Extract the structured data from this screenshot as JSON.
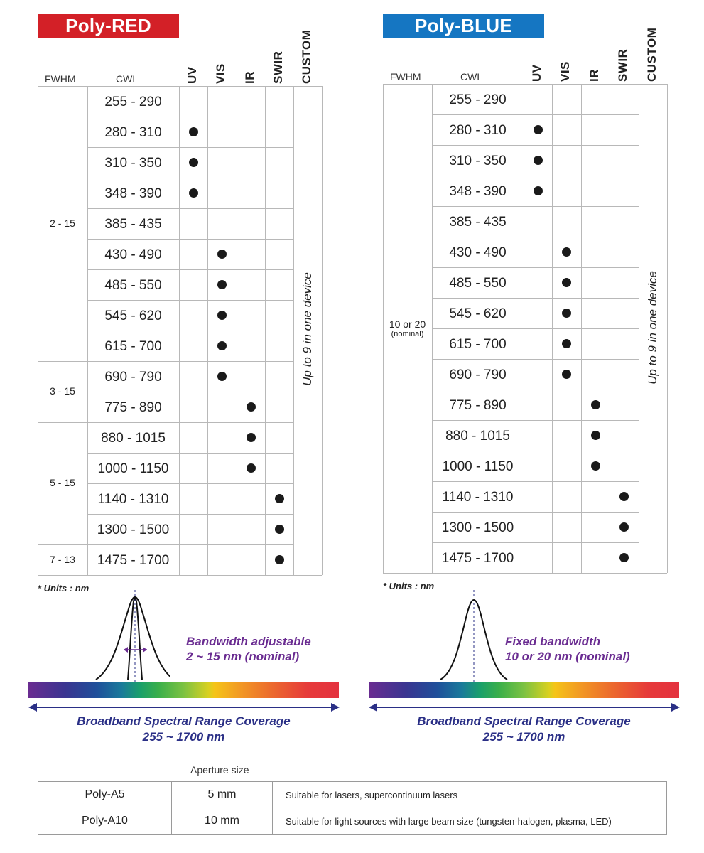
{
  "red": {
    "title": "Poly-RED",
    "header_fwhm": "FWHM",
    "header_cwl": "CWL",
    "bands": [
      "UV",
      "VIS",
      "IR",
      "SWIR",
      "CUSTOM"
    ],
    "rows": [
      {
        "cwl": "255 - 290",
        "band": null
      },
      {
        "cwl": "280 - 310",
        "band": 0
      },
      {
        "cwl": "310 - 350",
        "band": 0
      },
      {
        "cwl": "348 - 390",
        "band": 0
      },
      {
        "cwl": "385 - 435",
        "band": null
      },
      {
        "cwl": "430 - 490",
        "band": 1
      },
      {
        "cwl": "485 - 550",
        "band": 1
      },
      {
        "cwl": "545 - 620",
        "band": 1
      },
      {
        "cwl": "615 - 700",
        "band": 1
      },
      {
        "cwl": "690 - 790",
        "band": 1
      },
      {
        "cwl": "775 - 890",
        "band": 2
      },
      {
        "cwl": "880 - 1015",
        "band": 2
      },
      {
        "cwl": "1000 - 1150",
        "band": 2
      },
      {
        "cwl": "1140 - 1310",
        "band": 3
      },
      {
        "cwl": "1300 - 1500",
        "band": 3
      },
      {
        "cwl": "1475 - 1700",
        "band": 3
      }
    ],
    "fwhm_groups": [
      {
        "label": "2 - 15",
        "start": 0,
        "count": 9
      },
      {
        "label": "3 - 15",
        "start": 9,
        "count": 2
      },
      {
        "label": "5 - 15",
        "start": 11,
        "count": 4
      },
      {
        "label": "7 - 13",
        "start": 15,
        "count": 1
      }
    ],
    "custom_note": "Up to 9 in one device",
    "units": "* Units : nm",
    "bandwidth_line1": "Bandwidth adjustable",
    "bandwidth_line2": "2 ~ 15 nm (nominal)",
    "coverage_line1": "Broadband Spectral Range Coverage",
    "coverage_line2": "255 ~ 1700 nm"
  },
  "blue": {
    "title": "Poly-BLUE",
    "header_fwhm": "FWHM",
    "header_cwl": "CWL",
    "bands": [
      "UV",
      "VIS",
      "IR",
      "SWIR",
      "CUSTOM"
    ],
    "rows": [
      {
        "cwl": "255 - 290",
        "band": null
      },
      {
        "cwl": "280 - 310",
        "band": 0
      },
      {
        "cwl": "310 - 350",
        "band": 0
      },
      {
        "cwl": "348 - 390",
        "band": 0
      },
      {
        "cwl": "385 - 435",
        "band": null
      },
      {
        "cwl": "430 - 490",
        "band": 1
      },
      {
        "cwl": "485 - 550",
        "band": 1
      },
      {
        "cwl": "545 - 620",
        "band": 1
      },
      {
        "cwl": "615 - 700",
        "band": 1
      },
      {
        "cwl": "690 - 790",
        "band": 1
      },
      {
        "cwl": "775 - 890",
        "band": 2
      },
      {
        "cwl": "880 - 1015",
        "band": 2
      },
      {
        "cwl": "1000 - 1150",
        "band": 2
      },
      {
        "cwl": "1140 - 1310",
        "band": 3
      },
      {
        "cwl": "1300 - 1500",
        "band": 3
      },
      {
        "cwl": "1475 - 1700",
        "band": 3
      }
    ],
    "fwhm_label": "10 or 20",
    "fwhm_sub": "(nominal)",
    "custom_note": "Up to 9 in one device",
    "units": "* Units : nm",
    "bandwidth_line1": "Fixed bandwidth",
    "bandwidth_line2": "10 or 20 nm (nominal)",
    "coverage_line1": "Broadband Spectral Range Coverage",
    "coverage_line2": "255 ~ 1700 nm"
  },
  "aperture": {
    "header": "Aperture size",
    "rows": [
      {
        "model": "Poly-A5",
        "size": "5 mm",
        "note": "Suitable for lasers, supercontinuum lasers"
      },
      {
        "model": "Poly-A10",
        "size": "10 mm",
        "note": "Suitable for light sources with large beam size (tungsten-halogen, plasma, LED)"
      }
    ]
  },
  "colors": {
    "red_banner": "#d32027",
    "blue_banner": "#1576c2",
    "bandwidth_text": "#6a2c91",
    "coverage_text": "#2a2f86",
    "arrow": "#2a2f86"
  }
}
